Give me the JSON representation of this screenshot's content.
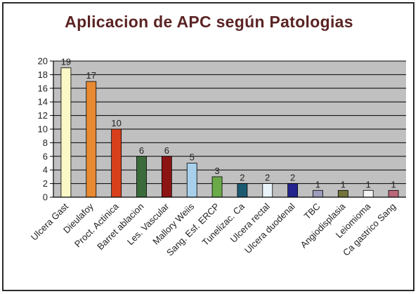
{
  "chart_data": {
    "type": "bar",
    "title": "Aplicacion de APC según Patologias",
    "xlabel": "",
    "ylabel": "",
    "ylim": [
      0,
      20
    ],
    "y_ticks": [
      0,
      2,
      4,
      6,
      8,
      10,
      12,
      14,
      16,
      18,
      20
    ],
    "grid": true,
    "legend": "none",
    "plot_background": "#c0c0c0",
    "categories": [
      "Ulcera Gast",
      "Dieulafoy",
      "Proct. Actinica",
      "Barret ablacion",
      "Les. Vascular",
      "Mallory Weiis",
      "Sang. Esf. ERCP",
      "Tunelizac. Ca",
      "Ulcera rectal",
      "Ulcera duodenal",
      "TBC",
      "Angiodisplasia",
      "Leiomioma",
      "Ca gastrico Sang"
    ],
    "values": [
      19,
      17,
      10,
      6,
      6,
      5,
      3,
      2,
      2,
      2,
      1,
      1,
      1,
      1
    ],
    "bar_colors": [
      "#fbf8c8",
      "#e88a32",
      "#d8401c",
      "#3b6b3b",
      "#8c1414",
      "#a8d0ec",
      "#6aaa48",
      "#1c5a72",
      "#e8f4fa",
      "#24248c",
      "#9c9cbc",
      "#74743c",
      "#f4f4f4",
      "#b86878"
    ]
  }
}
